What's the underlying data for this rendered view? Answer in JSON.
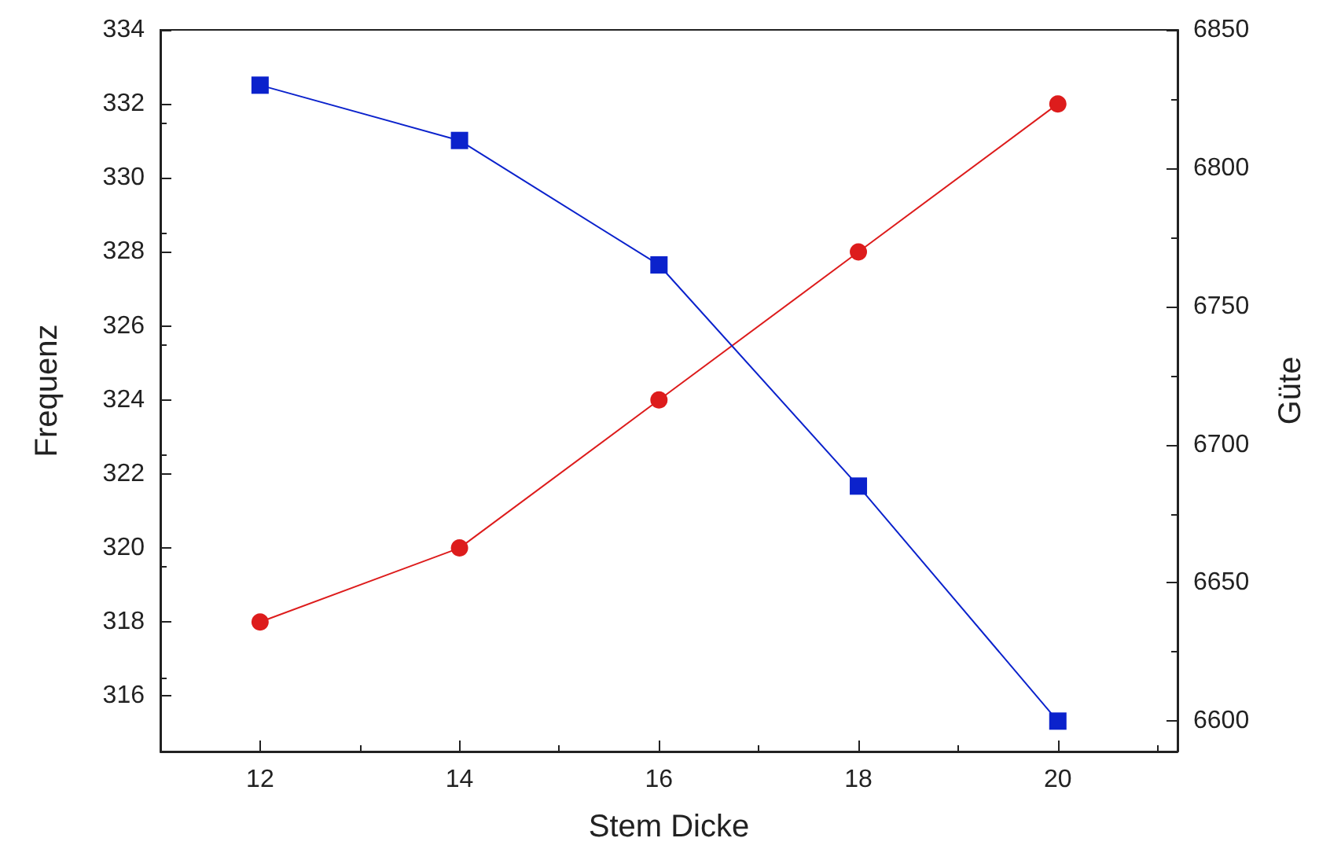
{
  "chart_data": {
    "type": "line",
    "xlabel": "Stem Dicke",
    "ylabel": "Frequenz",
    "y2label": "Güte",
    "x": [
      12,
      14,
      16,
      18,
      20
    ],
    "series": [
      {
        "color": "#dd1c1c",
        "values": [
          318,
          320,
          324,
          328,
          332
        ],
        "marker": "circle"
      },
      {
        "color": "#0b22cc",
        "values": [
          6830,
          6810,
          6765,
          6685,
          6600
        ],
        "marker": "square",
        "axis": "y2"
      }
    ],
    "xlim": [
      11,
      21.2
    ],
    "xticks": [
      12,
      14,
      16,
      18,
      20
    ],
    "ylim": [
      314.5,
      334
    ],
    "yticks": [
      316,
      318,
      320,
      322,
      324,
      326,
      328,
      330,
      332,
      334
    ],
    "y2lim": [
      6589,
      6850
    ],
    "y2ticks": [
      6600,
      6650,
      6700,
      6750,
      6800,
      6850
    ],
    "grid": false,
    "line_style": "solid"
  }
}
